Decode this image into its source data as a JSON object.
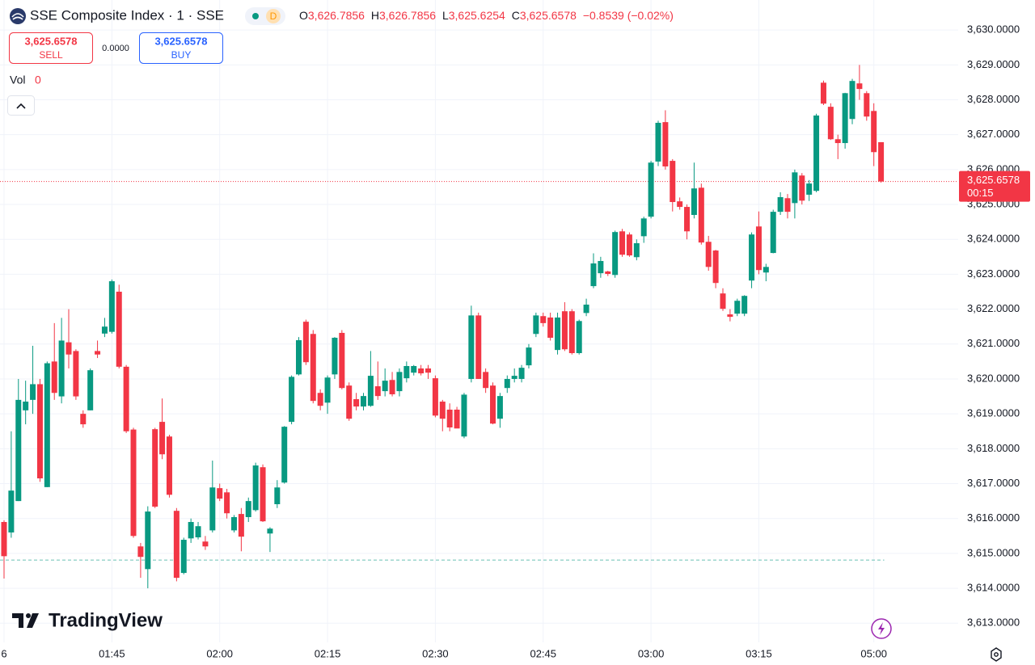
{
  "header": {
    "title": "SSE Composite Index · 1 · SSE",
    "badge": "D",
    "ohlc": [
      {
        "label": "O",
        "value": "3,626.7856"
      },
      {
        "label": "H",
        "value": "3,626.7856"
      },
      {
        "label": "L",
        "value": "3,625.6254"
      },
      {
        "label": "C",
        "value": "3,625.6578"
      }
    ],
    "change": "−0.8539 (−0.02%)"
  },
  "trade": {
    "sell": {
      "price": "3,625.6578",
      "label": "SELL"
    },
    "spread": "0.0000",
    "buy": {
      "price": "3,625.6578",
      "label": "BUY"
    }
  },
  "volume": {
    "label": "Vol",
    "value": "0"
  },
  "logo": "TradingView",
  "chart_data": {
    "type": "candlestick",
    "up_color": "#089981",
    "down_color": "#f23645",
    "grid": true,
    "categories": [
      "01:30",
      "01:31",
      "01:32",
      "01:33",
      "01:34",
      "01:35",
      "01:36",
      "01:37",
      "01:38",
      "01:39",
      "01:40",
      "01:41",
      "01:42",
      "01:43",
      "01:44",
      "01:45",
      "01:46",
      "01:47",
      "01:48",
      "01:49",
      "01:50",
      "01:51",
      "01:52",
      "01:53",
      "01:54",
      "01:55",
      "01:56",
      "01:57",
      "01:58",
      "01:59",
      "02:00",
      "02:01",
      "02:02",
      "02:03",
      "02:04",
      "02:05",
      "02:06",
      "02:07",
      "02:08",
      "02:09",
      "02:10",
      "02:11",
      "02:12",
      "02:13",
      "02:14",
      "02:15",
      "02:16",
      "02:17",
      "02:18",
      "02:19",
      "02:20",
      "02:21",
      "02:22",
      "02:23",
      "02:24",
      "02:25",
      "02:26",
      "02:27",
      "02:28",
      "02:29",
      "02:30",
      "02:31",
      "02:32",
      "02:33",
      "02:34",
      "02:35",
      "02:36",
      "02:37",
      "02:38",
      "02:39",
      "02:40",
      "02:41",
      "02:42",
      "02:43",
      "02:44",
      "02:45",
      "02:46",
      "02:47",
      "02:48",
      "02:49",
      "02:50",
      "02:51",
      "02:52",
      "02:53",
      "02:54",
      "02:55",
      "02:56",
      "02:57",
      "02:58",
      "02:59",
      "03:00",
      "03:01",
      "03:02",
      "03:03",
      "03:04",
      "03:05",
      "03:06",
      "03:07",
      "03:08",
      "03:09",
      "03:10",
      "03:11",
      "03:12",
      "03:13",
      "03:14",
      "03:15",
      "03:16",
      "03:17",
      "03:18",
      "03:19",
      "03:20",
      "03:21",
      "03:22",
      "03:23",
      "03:24",
      "03:25",
      "03:26",
      "03:27",
      "03:28",
      "03:29",
      "03:30",
      "05:00",
      "05:01"
    ],
    "open": [
      3615.9,
      3615.6,
      3616.5,
      3619.1,
      3619.4,
      3619.85,
      3616.9,
      3620.5,
      3619.5,
      3621.05,
      3620.8,
      3619.0,
      3619.1,
      3620.8,
      3621.3,
      3621.35,
      3622.5,
      3620.35,
      3618.55,
      3615.2,
      3614.55,
      3618.56,
      3618.77,
      3618.35,
      3616.22,
      3614.44,
      3615.43,
      3615.46,
      3615.34,
      3615.66,
      3616.87,
      3616.75,
      3615.66,
      3616.13,
      3616.04,
      3616.24,
      3617.47,
      3615.57,
      3616.41,
      3617.03,
      3618.77,
      3620.13,
      3621.64,
      3621.29,
      3619.6,
      3619.32,
      3620.13,
      3621.32,
      3619.81,
      3619.42,
      3619.21,
      3619.23,
      3619.79,
      3619.65,
      3619.97,
      3619.65,
      3620.02,
      3620.18,
      3620.3,
      3620.3,
      3620.02,
      3619.35,
      3619.12,
      3619.12,
      3618.35,
      3620.0,
      3621.82,
      3620.2,
      3619.81,
      3618.86,
      3619.74,
      3620.0,
      3620.0,
      3620.39,
      3621.29,
      3621.8,
      3621.76,
      3620.83,
      3621.94,
      3621.94,
      3620.74,
      3621.89,
      3622.66,
      3623.03,
      3623.08,
      3622.98,
      3624.23,
      3624.14,
      3623.49,
      3624.09,
      3624.65,
      3626.23,
      3627.36,
      3626.25,
      3625.09,
      3624.93,
      3624.7,
      3625.48,
      3623.93,
      3623.68,
      3622.45,
      3621.85,
      3621.87,
      3621.87,
      3622.82,
      3624.37,
      3623.05,
      3623.61,
      3624.79,
      3625.18,
      3625.04,
      3625.83,
      3625.28,
      3625.39,
      3628.49,
      3627.8,
      3626.87,
      3626.76,
      3627.45,
      3628.47,
      3628.19,
      3627.68,
      3626.7856
    ],
    "high": [
      3615.95,
      3618.5,
      3620.0,
      3619.95,
      3620.95,
      3620.0,
      3620.5,
      3621.6,
      3621.75,
      3622.0,
      3620.85,
      3619.1,
      3620.3,
      3621.1,
      3621.75,
      3622.85,
      3622.7,
      3620.4,
      3618.6,
      3615.3,
      3616.35,
      3618.6,
      3619.44,
      3618.4,
      3616.3,
      3615.45,
      3616.0,
      3615.9,
      3615.5,
      3617.66,
      3617.0,
      3616.85,
      3616.1,
      3616.3,
      3616.6,
      3617.6,
      3617.55,
      3615.75,
      3617.1,
      3618.65,
      3620.1,
      3621.2,
      3621.7,
      3621.4,
      3619.7,
      3620.1,
      3621.2,
      3621.4,
      3619.9,
      3619.6,
      3619.6,
      3620.8,
      3620.5,
      3620.3,
      3620.2,
      3620.3,
      3620.5,
      3620.4,
      3620.4,
      3620.4,
      3620.1,
      3619.4,
      3619.3,
      3619.2,
      3619.6,
      3622.1,
      3621.9,
      3620.3,
      3619.9,
      3619.6,
      3620.1,
      3620.3,
      3620.4,
      3621.0,
      3621.9,
      3621.9,
      3621.9,
      3621.9,
      3622.2,
      3622.0,
      3621.7,
      3622.3,
      3623.6,
      3623.5,
      3623.1,
      3624.25,
      3624.3,
      3624.2,
      3624.0,
      3624.65,
      3626.25,
      3627.4,
      3627.7,
      3626.3,
      3625.2,
      3625.0,
      3626.2,
      3625.6,
      3624.1,
      3623.7,
      3622.6,
      3622.0,
      3622.3,
      3622.4,
      3624.2,
      3624.8,
      3623.3,
      3624.85,
      3625.35,
      3625.3,
      3626.0,
      3625.9,
      3625.7,
      3627.6,
      3628.55,
      3627.9,
      3627.0,
      3628.2,
      3628.6,
      3629.0,
      3628.25,
      3627.9,
      3626.7856
    ],
    "low": [
      3614.28,
      3615.45,
      3616.5,
      3618.7,
      3619.0,
      3617.05,
      3616.9,
      3619.4,
      3619.3,
      3620.3,
      3619.4,
      3618.6,
      3619.1,
      3620.6,
      3621.2,
      3621.3,
      3620.3,
      3618.45,
      3615.45,
      3614.3,
      3614.0,
      3616.3,
      3617.7,
      3616.6,
      3614.2,
      3614.4,
      3615.3,
      3615.4,
      3615.1,
      3615.6,
      3616.5,
      3616.0,
      3615.6,
      3615.06,
      3615.9,
      3616.2,
      3615.9,
      3615.04,
      3616.3,
      3617.0,
      3618.7,
      3620.1,
      3620.4,
      3619.3,
      3619.1,
      3619.0,
      3620.0,
      3619.7,
      3618.8,
      3619.1,
      3619.1,
      3619.2,
      3619.4,
      3619.5,
      3619.5,
      3619.5,
      3619.9,
      3620.1,
      3620.1,
      3620.0,
      3618.9,
      3618.5,
      3618.5,
      3618.6,
      3618.3,
      3619.9,
      3620.0,
      3619.6,
      3618.7,
      3618.6,
      3619.6,
      3619.9,
      3619.9,
      3620.3,
      3621.2,
      3621.5,
      3621.1,
      3620.7,
      3620.8,
      3620.7,
      3620.7,
      3621.8,
      3622.6,
      3622.9,
      3622.95,
      3622.9,
      3623.5,
      3623.5,
      3623.4,
      3623.9,
      3624.6,
      3626.1,
      3626.0,
      3624.8,
      3624.85,
      3624.0,
      3624.6,
      3623.85,
      3623.1,
      3622.6,
      3621.95,
      3621.65,
      3621.8,
      3621.8,
      3622.6,
      3623.0,
      3622.8,
      3623.6,
      3624.7,
      3624.6,
      3624.6,
      3625.0,
      3625.1,
      3625.35,
      3627.85,
      3626.85,
      3626.3,
      3626.6,
      3627.3,
      3628.0,
      3627.4,
      3626.1,
      3625.6254
    ],
    "close": [
      3614.92,
      3616.8,
      3619.4,
      3619.35,
      3619.85,
      3617.15,
      3620.45,
      3619.6,
      3621.1,
      3620.7,
      3619.5,
      3618.7,
      3620.25,
      3620.7,
      3621.5,
      3622.8,
      3620.35,
      3618.5,
      3615.5,
      3614.9,
      3616.2,
      3616.34,
      3617.84,
      3616.68,
      3614.3,
      3615.39,
      3615.9,
      3615.78,
      3615.2,
      3616.89,
      3616.57,
      3616.15,
      3616.04,
      3615.48,
      3616.5,
      3617.52,
      3615.92,
      3615.71,
      3616.89,
      3618.63,
      3620.06,
      3621.11,
      3620.48,
      3619.37,
      3619.23,
      3620.04,
      3621.18,
      3619.74,
      3618.86,
      3619.21,
      3619.51,
      3620.09,
      3619.51,
      3619.95,
      3619.56,
      3620.2,
      3620.37,
      3620.37,
      3620.16,
      3620.18,
      3618.95,
      3618.86,
      3618.61,
      3618.58,
      3619.55,
      3621.82,
      3620.0,
      3619.74,
      3618.72,
      3619.51,
      3620.0,
      3620.09,
      3620.32,
      3620.9,
      3621.82,
      3621.6,
      3621.18,
      3621.76,
      3620.85,
      3620.74,
      3621.66,
      3622.13,
      3623.31,
      3623.38,
      3623.01,
      3624.21,
      3623.56,
      3623.54,
      3623.89,
      3624.6,
      3626.2,
      3627.34,
      3626.09,
      3625.07,
      3624.93,
      3624.23,
      3625.46,
      3623.91,
      3623.21,
      3622.75,
      3622.01,
      3621.78,
      3622.24,
      3622.38,
      3624.14,
      3623.12,
      3623.21,
      3624.79,
      3625.21,
      3624.79,
      3625.92,
      3625.11,
      3625.6,
      3627.55,
      3627.89,
      3626.87,
      3626.76,
      3628.19,
      3628.54,
      3628.31,
      3627.52,
      3626.5,
      3625.6578
    ],
    "ylim": [
      3612.45,
      3630.86
    ],
    "yticks": [
      {
        "value": 3613,
        "label": "3,613.0000"
      },
      {
        "value": 3614,
        "label": "3,614.0000"
      },
      {
        "value": 3615,
        "label": "3,615.0000"
      },
      {
        "value": 3616,
        "label": "3,616.0000"
      },
      {
        "value": 3617,
        "label": "3,617.0000"
      },
      {
        "value": 3618,
        "label": "3,618.0000"
      },
      {
        "value": 3619,
        "label": "3,619.0000"
      },
      {
        "value": 3620,
        "label": "3,620.0000"
      },
      {
        "value": 3621,
        "label": "3,621.0000"
      },
      {
        "value": 3622,
        "label": "3,622.0000"
      },
      {
        "value": 3623,
        "label": "3,623.0000"
      },
      {
        "value": 3624,
        "label": "3,624.0000"
      },
      {
        "value": 3625,
        "label": "3,625.0000"
      },
      {
        "value": 3626,
        "label": "3,626.0000"
      },
      {
        "value": 3627,
        "label": "3,627.0000"
      },
      {
        "value": 3628,
        "label": "3,628.0000"
      },
      {
        "value": 3629,
        "label": "3,629.0000"
      },
      {
        "value": 3630,
        "label": "3,630.0000"
      }
    ],
    "xticks": [
      {
        "value": "01:30",
        "label": "6"
      },
      "01:45",
      "02:00",
      "02:15",
      "02:30",
      "02:45",
      "03:00",
      "03:15",
      "05:00"
    ],
    "last_price": {
      "value": 3625.6578,
      "label": "3,625.6578",
      "countdown": "00:15"
    },
    "reference_line": 3614.81
  }
}
